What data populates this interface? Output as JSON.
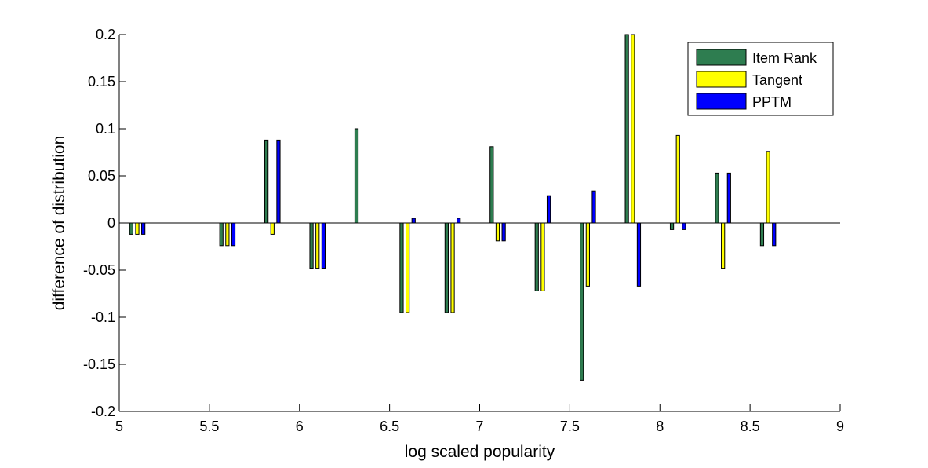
{
  "chart_data": {
    "type": "bar",
    "title": "",
    "xlabel": "log scaled popularity",
    "ylabel": "difference of distribution",
    "xlim": [
      5,
      9
    ],
    "ylim": [
      -0.2,
      0.2
    ],
    "x_ticks": [
      5,
      5.5,
      6,
      6.5,
      7,
      7.5,
      8,
      8.5,
      9
    ],
    "x_tick_labels": [
      "5",
      "5.5",
      "6",
      "6.5",
      "7",
      "7.5",
      "8",
      "8.5",
      "9"
    ],
    "y_ticks": [
      -0.2,
      -0.15,
      -0.1,
      -0.05,
      0,
      0.05,
      0.1,
      0.15,
      0.2
    ],
    "y_tick_labels": [
      "-0.2",
      "-0.15",
      "-0.1",
      "-0.05",
      "0",
      "0.05",
      "0.1",
      "0.15",
      "0.2"
    ],
    "grid": false,
    "legend_position": "top-right",
    "x": [
      5.1,
      5.6,
      5.85,
      6.1,
      6.35,
      6.6,
      6.85,
      7.1,
      7.35,
      7.6,
      7.85,
      8.1,
      8.35,
      8.6
    ],
    "series": [
      {
        "name": "Item Rank",
        "color": "#2e7d50",
        "values": [
          -0.012,
          -0.024,
          0.088,
          -0.048,
          0.1,
          -0.095,
          -0.095,
          0.081,
          -0.072,
          -0.167,
          0.2,
          -0.007,
          0.053,
          -0.024
        ]
      },
      {
        "name": "Tangent",
        "color": "#ffff00",
        "values": [
          -0.012,
          -0.024,
          -0.012,
          -0.048,
          0,
          -0.095,
          -0.095,
          -0.019,
          -0.072,
          -0.067,
          0.2,
          0.093,
          -0.048,
          0.076
        ]
      },
      {
        "name": "PPTM",
        "color": "#0000ff",
        "values": [
          -0.012,
          -0.024,
          0.088,
          -0.048,
          0,
          0.005,
          0.005,
          -0.019,
          0.029,
          0.034,
          -0.067,
          -0.007,
          0.053,
          -0.024
        ]
      }
    ]
  }
}
